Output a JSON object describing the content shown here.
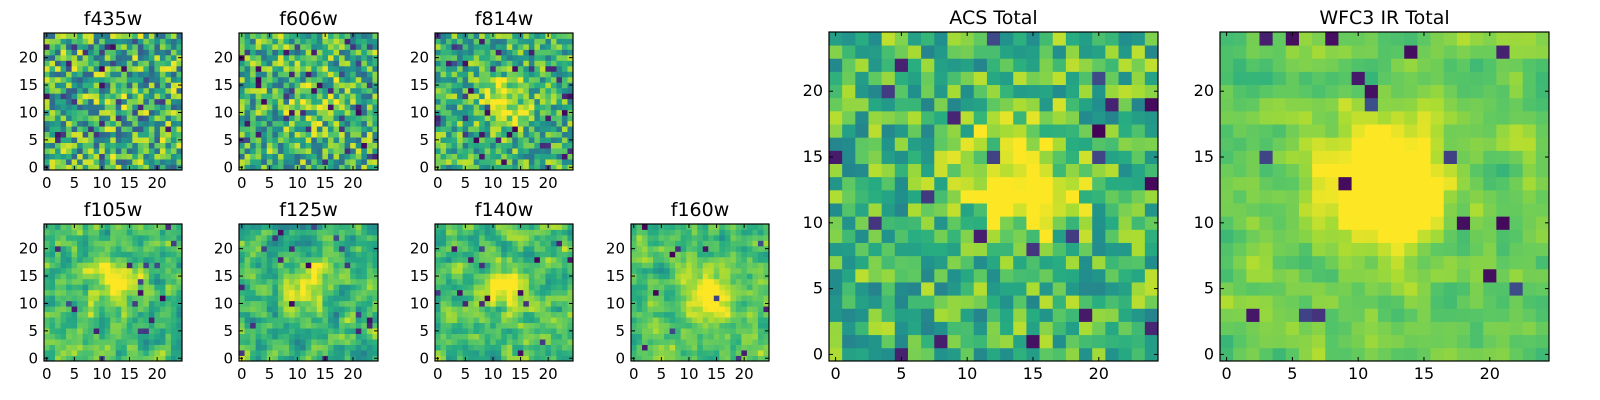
{
  "chart_data": [
    {
      "type": "heatmap",
      "title": "f435w",
      "colormap": "viridis",
      "grid_size": [
        25,
        25
      ],
      "xlim": [
        0,
        24
      ],
      "ylim": [
        0,
        24
      ],
      "xticks": [
        0,
        5,
        10,
        15,
        20
      ],
      "yticks": [
        0,
        5,
        10,
        15,
        20
      ],
      "seed": 11,
      "smooth": 0,
      "peak": [
        13,
        13
      ],
      "peak_strength": 0.05,
      "noise_floor": 0.7,
      "dark_fraction": 0.06
    },
    {
      "type": "heatmap",
      "title": "f606w",
      "colormap": "viridis",
      "grid_size": [
        25,
        25
      ],
      "xlim": [
        0,
        24
      ],
      "ylim": [
        0,
        24
      ],
      "xticks": [
        0,
        5,
        10,
        15,
        20
      ],
      "yticks": [
        0,
        5,
        10,
        15,
        20
      ],
      "seed": 23,
      "smooth": 0,
      "peak": [
        13,
        12
      ],
      "peak_strength": 0.15,
      "noise_floor": 0.65,
      "dark_fraction": 0.06
    },
    {
      "type": "heatmap",
      "title": "f814w",
      "colormap": "viridis",
      "grid_size": [
        25,
        25
      ],
      "xlim": [
        0,
        24
      ],
      "ylim": [
        0,
        24
      ],
      "xticks": [
        0,
        5,
        10,
        15,
        20
      ],
      "yticks": [
        0,
        5,
        10,
        15,
        20
      ],
      "seed": 37,
      "smooth": 0,
      "peak": [
        12,
        12
      ],
      "peak_strength": 0.35,
      "noise_floor": 0.6,
      "dark_fraction": 0.06
    },
    {
      "type": "heatmap",
      "title": "f105w",
      "colormap": "viridis",
      "grid_size": [
        25,
        25
      ],
      "xlim": [
        0,
        24
      ],
      "ylim": [
        0,
        24
      ],
      "xticks": [
        0,
        5,
        10,
        15,
        20
      ],
      "yticks": [
        0,
        5,
        10,
        15,
        20
      ],
      "seed": 41,
      "smooth": 1,
      "peak": [
        13,
        14
      ],
      "peak_strength": 0.35,
      "noise_floor": 0.55,
      "dark_fraction": 0.03
    },
    {
      "type": "heatmap",
      "title": "f125w",
      "colormap": "viridis",
      "grid_size": [
        25,
        25
      ],
      "xlim": [
        0,
        24
      ],
      "ylim": [
        0,
        24
      ],
      "xticks": [
        0,
        5,
        10,
        15,
        20
      ],
      "yticks": [
        0,
        5,
        10,
        15,
        20
      ],
      "seed": 53,
      "smooth": 1,
      "peak": [
        12,
        13
      ],
      "peak_strength": 0.25,
      "noise_floor": 0.6,
      "dark_fraction": 0.02
    },
    {
      "type": "heatmap",
      "title": "f140w",
      "colormap": "viridis",
      "grid_size": [
        25,
        25
      ],
      "xlim": [
        0,
        24
      ],
      "ylim": [
        0,
        24
      ],
      "xticks": [
        0,
        5,
        10,
        15,
        20
      ],
      "yticks": [
        0,
        5,
        10,
        15,
        20
      ],
      "seed": 67,
      "smooth": 1,
      "peak": [
        13,
        13
      ],
      "peak_strength": 0.3,
      "noise_floor": 0.55,
      "dark_fraction": 0.03
    },
    {
      "type": "heatmap",
      "title": "f160w",
      "colormap": "viridis",
      "grid_size": [
        25,
        25
      ],
      "xlim": [
        0,
        24
      ],
      "ylim": [
        0,
        24
      ],
      "xticks": [
        0,
        5,
        10,
        15,
        20
      ],
      "yticks": [
        0,
        5,
        10,
        15,
        20
      ],
      "seed": 79,
      "smooth": 1,
      "peak": [
        14,
        12
      ],
      "peak_strength": 0.4,
      "noise_floor": 0.5,
      "dark_fraction": 0.03
    },
    {
      "type": "heatmap",
      "title": "ACS Total",
      "colormap": "viridis",
      "grid_size": [
        25,
        25
      ],
      "xlim": [
        0,
        24
      ],
      "ylim": [
        0,
        24
      ],
      "xticks": [
        0,
        5,
        10,
        15,
        20
      ],
      "yticks": [
        0,
        5,
        10,
        15,
        20
      ],
      "seed": 97,
      "smooth": 0,
      "peak": [
        14,
        13
      ],
      "peak_strength": 0.4,
      "noise_floor": 0.55,
      "dark_fraction": 0.03
    },
    {
      "type": "heatmap",
      "title": "WFC3 IR Total",
      "colormap": "viridis",
      "grid_size": [
        25,
        25
      ],
      "xlim": [
        0,
        24
      ],
      "ylim": [
        0,
        24
      ],
      "xticks": [
        0,
        5,
        10,
        15,
        20
      ],
      "yticks": [
        0,
        5,
        10,
        15,
        20
      ],
      "seed": 113,
      "smooth": 1,
      "peak": [
        12,
        13
      ],
      "peak_strength": 0.55,
      "noise_floor": 0.35,
      "dark_fraction": 0.03
    }
  ]
}
